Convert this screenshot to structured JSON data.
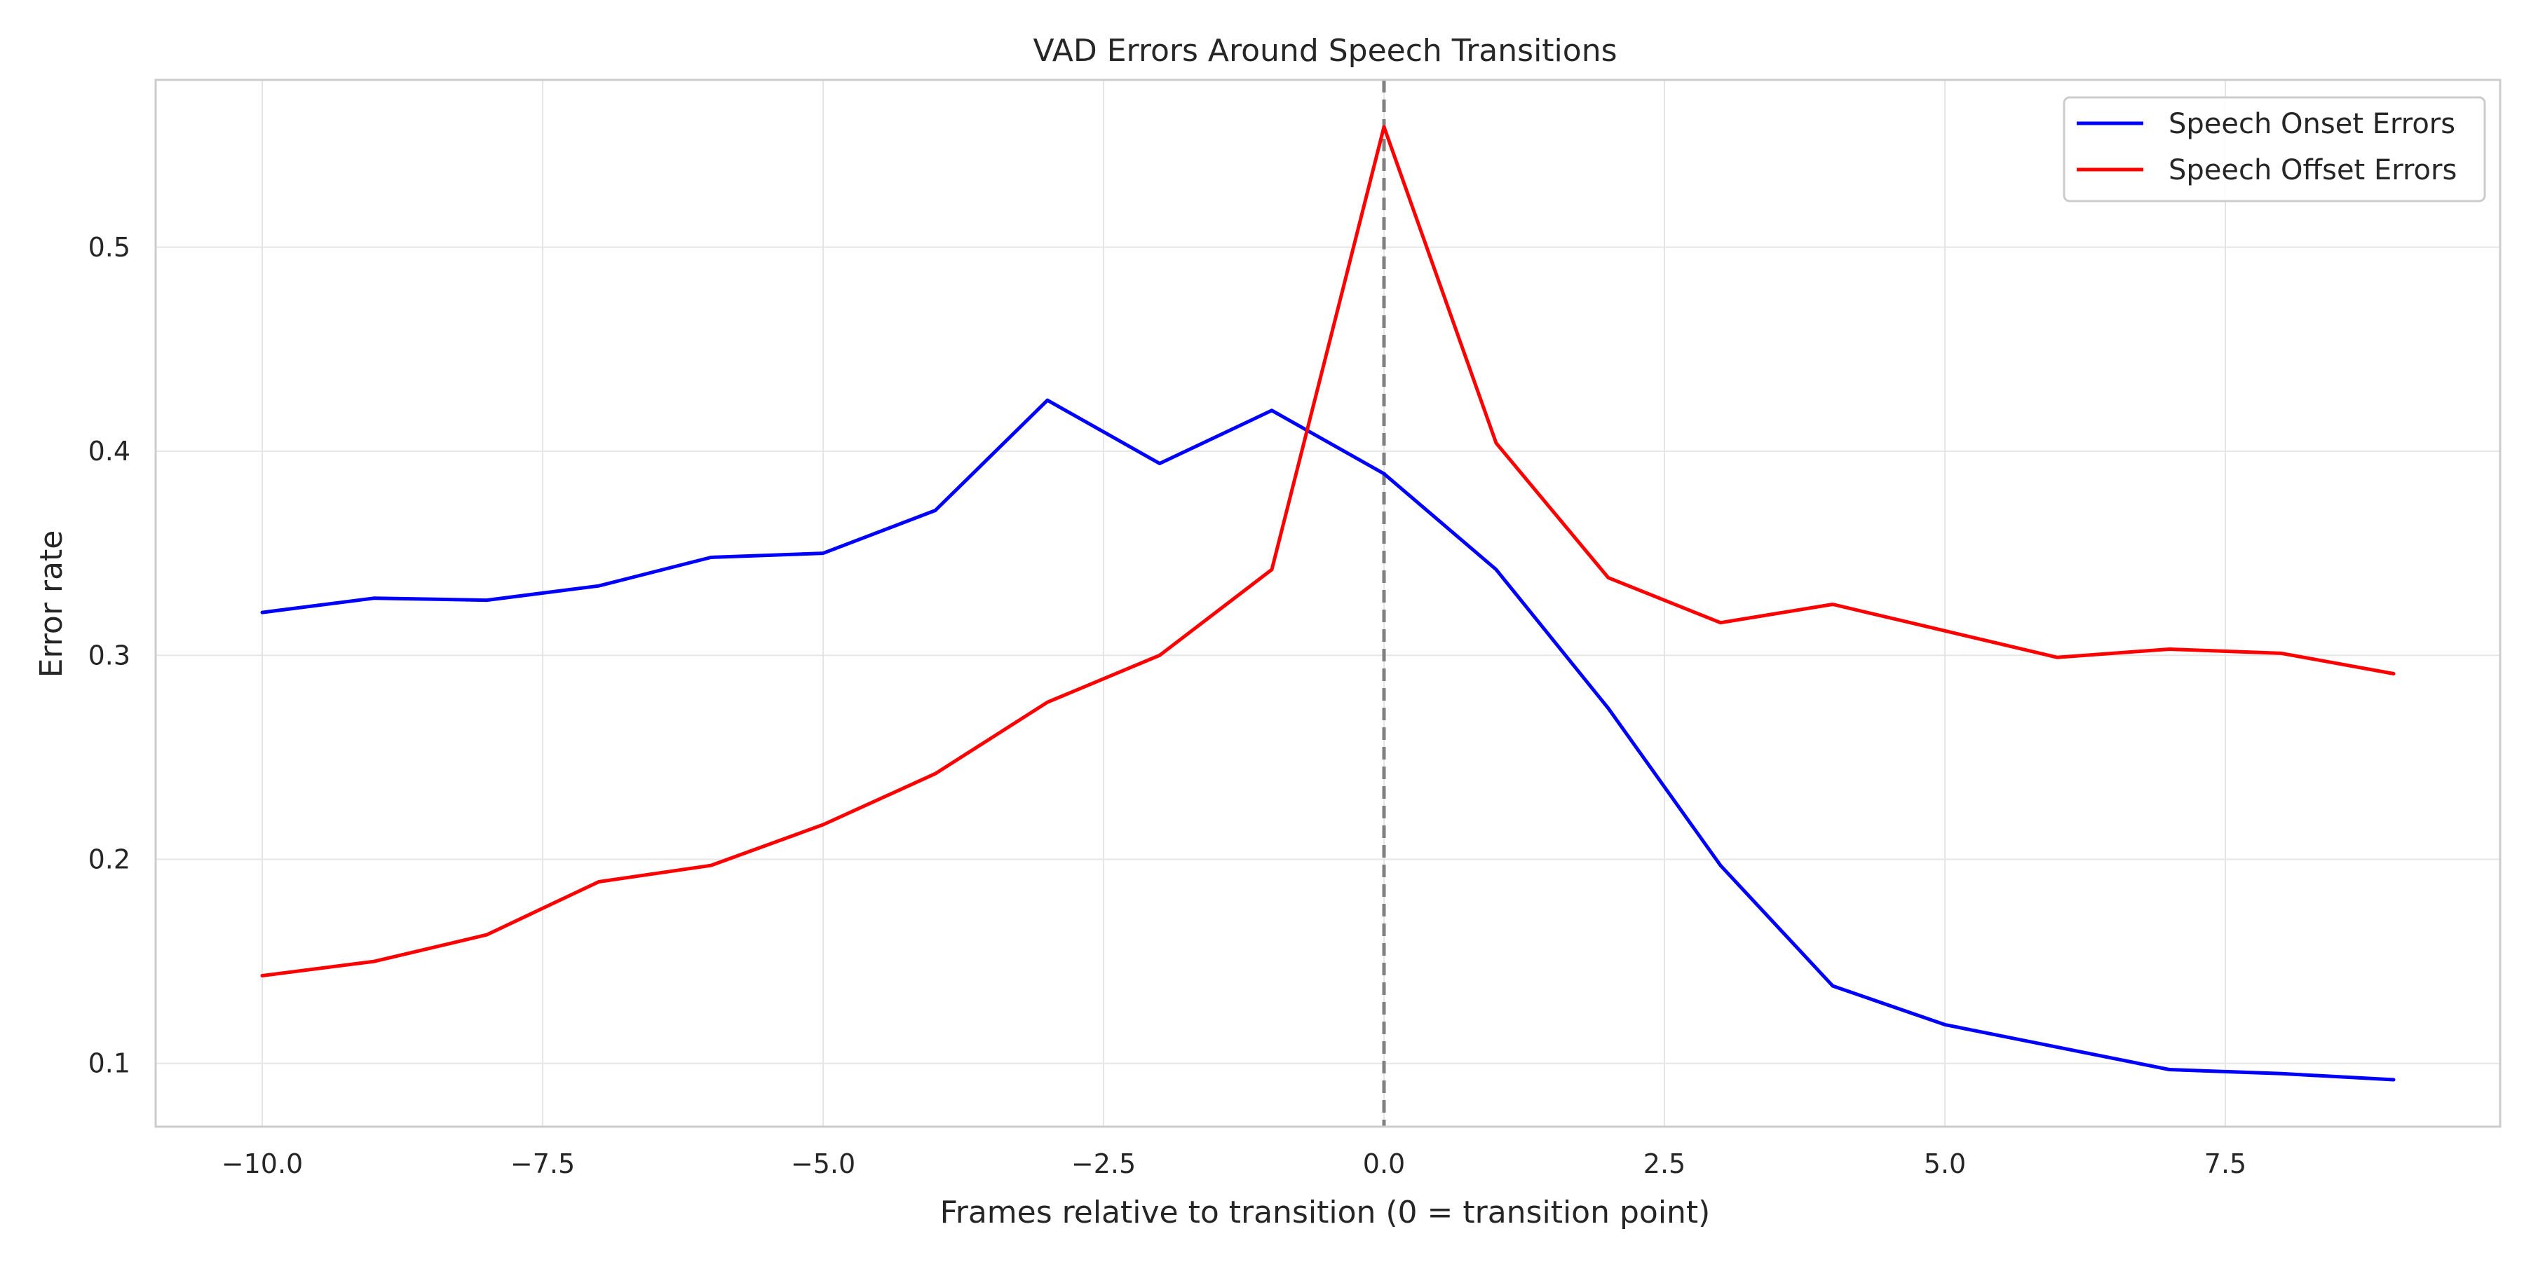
{
  "chart_data": {
    "type": "line",
    "title": "VAD Errors Around Speech Transitions",
    "xlabel": "Frames relative to transition (0 = transition point)",
    "ylabel": "Error rate",
    "x": [
      -10,
      -9,
      -8,
      -7,
      -6,
      -5,
      -4,
      -3,
      -2,
      -1,
      0,
      1,
      2,
      3,
      4,
      5,
      6,
      7,
      8,
      9
    ],
    "series": [
      {
        "name": "Speech Onset Errors",
        "color": "#0000ff",
        "values": [
          0.321,
          0.328,
          0.327,
          0.334,
          0.348,
          0.35,
          0.371,
          0.425,
          0.394,
          0.42,
          0.389,
          0.342,
          0.274,
          0.197,
          0.138,
          0.119,
          0.108,
          0.097,
          0.095,
          0.092
        ]
      },
      {
        "name": "Speech Offset Errors",
        "color": "#ff0000",
        "values": [
          0.143,
          0.15,
          0.163,
          0.189,
          0.197,
          0.217,
          0.242,
          0.277,
          0.3,
          0.342,
          0.559,
          0.404,
          0.338,
          0.316,
          0.325,
          0.312,
          0.299,
          0.303,
          0.301,
          0.291
        ]
      }
    ],
    "xlim": [
      -10.95,
      9.95
    ],
    "ylim": [
      0.069,
      0.582
    ],
    "xticks": [
      -10.0,
      -7.5,
      -5.0,
      -2.5,
      0.0,
      2.5,
      5.0,
      7.5
    ],
    "xtick_labels": [
      "−10.0",
      "−7.5",
      "−5.0",
      "−2.5",
      "0.0",
      "2.5",
      "5.0",
      "7.5"
    ],
    "yticks": [
      0.1,
      0.2,
      0.3,
      0.4,
      0.5
    ],
    "ytick_labels": [
      "0.1",
      "0.2",
      "0.3",
      "0.4",
      "0.5"
    ],
    "reference_line": {
      "x": 0,
      "style": "dashed",
      "color": "#808080"
    },
    "grid": true,
    "legend_position": "top-right"
  }
}
